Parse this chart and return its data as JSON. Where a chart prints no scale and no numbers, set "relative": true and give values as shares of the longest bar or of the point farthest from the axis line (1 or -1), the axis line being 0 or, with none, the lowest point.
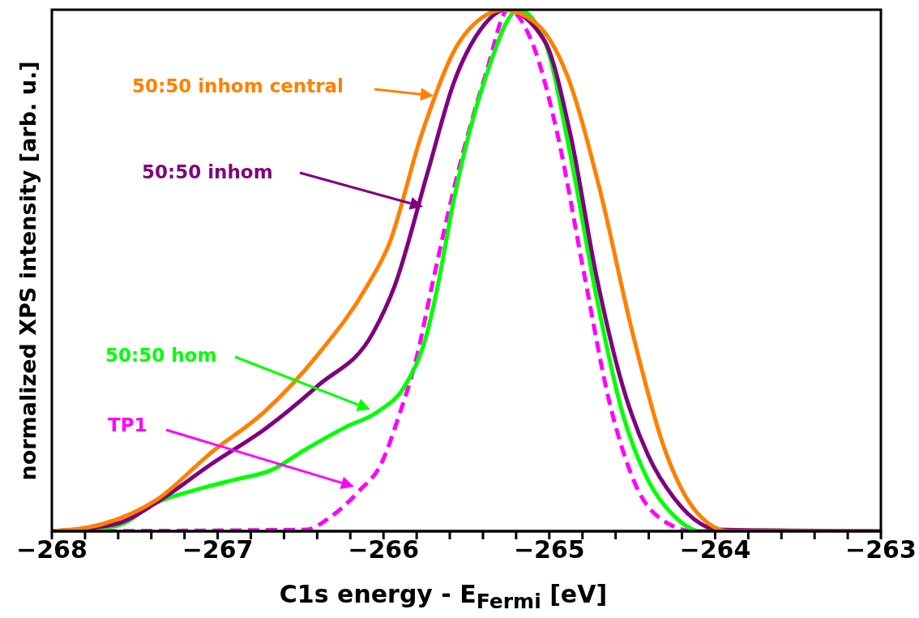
{
  "chart_data": {
    "type": "line",
    "relative": true,
    "xlabel": "C1s energy - E$_{Fermi}$ [eV]",
    "ylabel": "normalized XPS intensity [arb. u.]",
    "xlim": [
      -268,
      -263
    ],
    "xticks": [
      -268,
      {
        "value": -267.8,
        "label": null
      },
      {
        "value": -267.6,
        "label": null
      },
      {
        "value": -267.4,
        "label": null
      },
      {
        "value": -267.2,
        "label": null
      },
      -267,
      {
        "value": -266.8,
        "label": null
      },
      {
        "value": -266.6,
        "label": null
      },
      {
        "value": -266.4,
        "label": null
      },
      {
        "value": -266.2,
        "label": null
      },
      -266,
      {
        "value": -265.8,
        "label": null
      },
      {
        "value": -265.6,
        "label": null
      },
      {
        "value": -265.4,
        "label": null
      },
      {
        "value": -265.2,
        "label": null
      },
      -265,
      {
        "value": -264.8,
        "label": null
      },
      {
        "value": -264.6,
        "label": null
      },
      {
        "value": -264.4,
        "label": null
      },
      {
        "value": -264.2,
        "label": null
      },
      -264,
      {
        "value": -263.8,
        "label": null
      },
      {
        "value": -263.6,
        "label": null
      },
      {
        "value": -263.4,
        "label": null
      },
      {
        "value": -263.2,
        "label": null
      },
      -263
    ],
    "grid": false,
    "legend": "left",
    "marker": "none",
    "series": [
      {
        "name": "50:50 inhom central",
        "color": "#ff8000",
        "line_style": "solid",
        "x": [
          -268,
          -267.692,
          -267.369,
          -267.042,
          -266.715,
          -266.392,
          -266.099,
          -265.967,
          -265.771,
          -265.576,
          -265.38,
          -265.282,
          -265.087,
          -264.892,
          -264.696,
          -264.5,
          -264.305,
          -264.11,
          -263.914,
          -263
        ],
        "values": [
          0,
          0.014,
          0.06,
          0.15,
          0.23,
          0.34,
          0.47,
          0.55,
          0.76,
          0.92,
          0.99,
          1,
          0.976,
          0.874,
          0.656,
          0.383,
          0.158,
          0.036,
          0,
          0
        ]
      },
      {
        "name": "50:50 inhom",
        "color": "#7f007f",
        "line_style": "solid",
        "x": [
          -268,
          -267.614,
          -267.369,
          -267.042,
          -266.715,
          -266.392,
          -266.064,
          -265.933,
          -265.732,
          -265.576,
          -265.419,
          -265.263,
          -265.028,
          -264.872,
          -264.716,
          -264.559,
          -264.403,
          -264.246,
          -264.09,
          -263.992,
          -263
        ],
        "values": [
          0,
          0.014,
          0.055,
          0.128,
          0.196,
          0.28,
          0.38,
          0.47,
          0.69,
          0.86,
          0.96,
          1,
          0.94,
          0.76,
          0.49,
          0.28,
          0.145,
          0.063,
          0.015,
          0.003,
          0
        ]
      },
      {
        "name": "50:50 hom",
        "color": "#00ff00",
        "line_style": "solid",
        "x": [
          -268,
          -267.614,
          -267.369,
          -267.125,
          -266.881,
          -266.685,
          -266.47,
          -266.226,
          -266.03,
          -265.869,
          -265.737,
          -265.673,
          -265.576,
          -265.38,
          -265.185,
          -265.028,
          -264.872,
          -264.716,
          -264.559,
          -264.403,
          -264.246,
          -264.09,
          -263
        ],
        "values": [
          0,
          0.01,
          0.055,
          0.08,
          0.1,
          0.116,
          0.157,
          0.2,
          0.23,
          0.28,
          0.38,
          0.47,
          0.635,
          0.874,
          1,
          0.94,
          0.72,
          0.45,
          0.227,
          0.097,
          0.029,
          0,
          0
        ]
      },
      {
        "name": "TP1",
        "color": "#ff00ff",
        "line_style": "dashed",
        "x": [
          -268,
          -266.47,
          -266.309,
          -266.148,
          -266.016,
          -265.903,
          -265.805,
          -265.708,
          -265.576,
          -265.38,
          -265.248,
          -265.107,
          -264.95,
          -264.794,
          -264.637,
          -264.481,
          -264.285,
          -264.129,
          -263
        ],
        "values": [
          0,
          0.003,
          0.03,
          0.077,
          0.128,
          0.225,
          0.327,
          0.47,
          0.656,
          0.88,
          1,
          0.94,
          0.76,
          0.5,
          0.247,
          0.09,
          0.015,
          0,
          0
        ]
      }
    ]
  }
}
